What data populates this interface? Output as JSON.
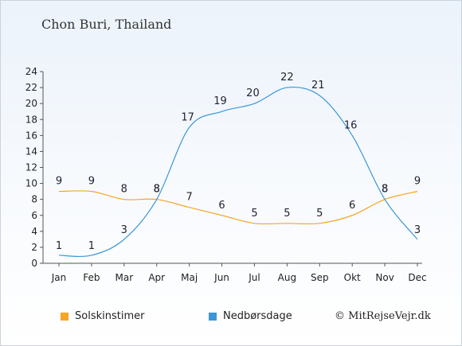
{
  "title": "Chon Buri, Thailand",
  "credit": "© MitRejseVejr.dk",
  "chart_data": {
    "type": "line",
    "categories": [
      "Jan",
      "Feb",
      "Mar",
      "Apr",
      "Maj",
      "Jun",
      "Jul",
      "Aug",
      "Sep",
      "Okt",
      "Nov",
      "Dec"
    ],
    "series": [
      {
        "name": "Solskinstimer",
        "color": "#f5a623",
        "values": [
          9,
          9,
          8,
          8,
          7,
          6,
          5,
          5,
          5,
          6,
          8,
          9
        ]
      },
      {
        "name": "Nedbørsdage",
        "color": "#3a96d8",
        "values": [
          1,
          1,
          3,
          8,
          17,
          19,
          20,
          22,
          21,
          16,
          8,
          3
        ]
      }
    ],
    "ylim": [
      0,
      24
    ],
    "yticks": [
      0,
      2,
      4,
      6,
      8,
      10,
      12,
      14,
      16,
      18,
      20,
      22,
      24
    ],
    "grid": false,
    "legend_position": "bottom-left"
  }
}
